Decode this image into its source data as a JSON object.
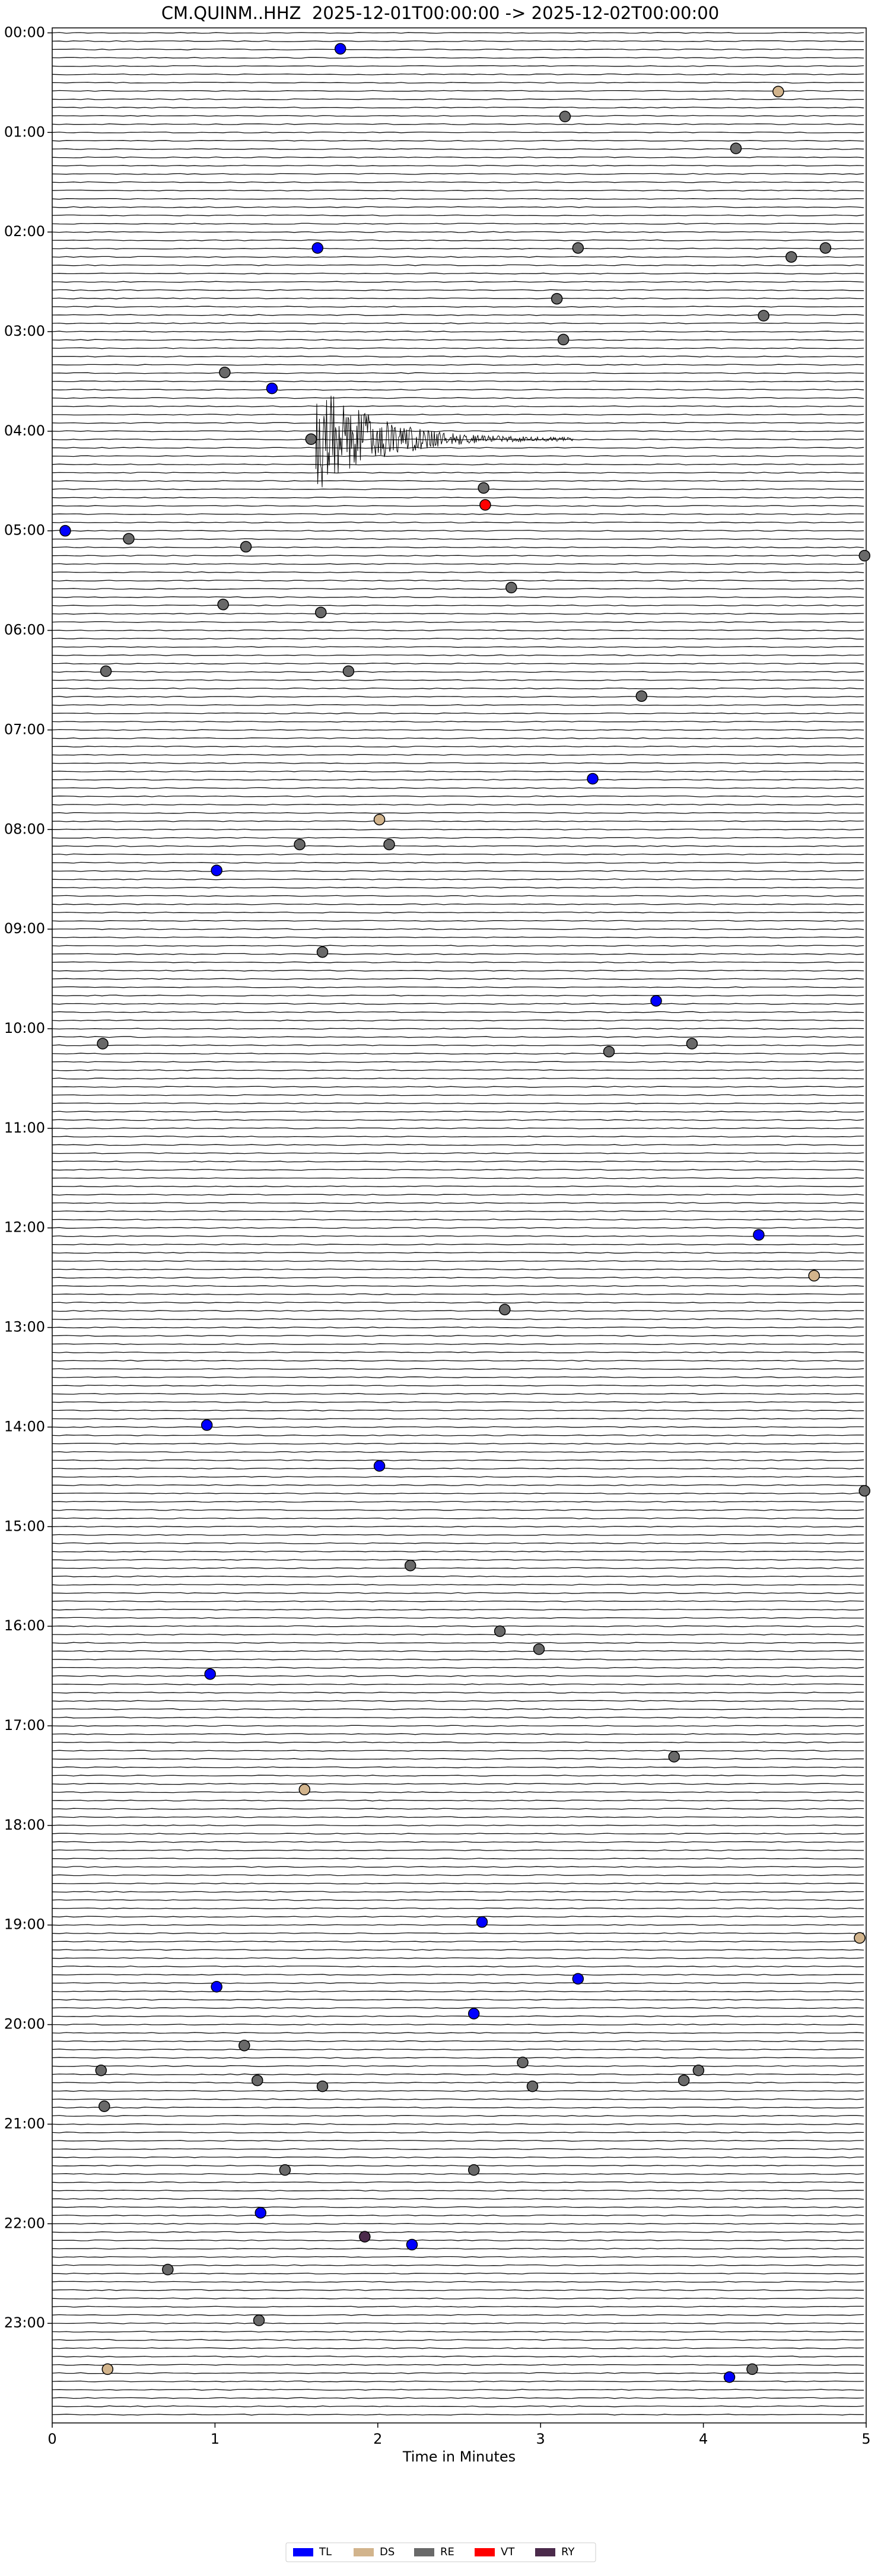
{
  "chart_data": {
    "type": "scatter",
    "title": "CM.QUINM..HHZ  2025-12-01T00:00:00 -> 2025-12-02T00:00:00",
    "xlabel": "Time in Minutes",
    "xlim": [
      0,
      5
    ],
    "xticks": [
      0,
      1,
      2,
      3,
      4,
      5
    ],
    "ylim": [
      -0.05,
      24
    ],
    "y_inverted": true,
    "yticks": [
      {
        "value": 0,
        "label": "00:00"
      },
      {
        "value": 1,
        "label": "01:00"
      },
      {
        "value": 2,
        "label": "02:00"
      },
      {
        "value": 3,
        "label": "03:00"
      },
      {
        "value": 4,
        "label": "04:00"
      },
      {
        "value": 5,
        "label": "05:00"
      },
      {
        "value": 6,
        "label": "06:00"
      },
      {
        "value": 7,
        "label": "07:00"
      },
      {
        "value": 8,
        "label": "08:00"
      },
      {
        "value": 9,
        "label": "09:00"
      },
      {
        "value": 10,
        "label": "10:00"
      },
      {
        "value": 11,
        "label": "11:00"
      },
      {
        "value": 12,
        "label": "12:00"
      },
      {
        "value": 13,
        "label": "13:00"
      },
      {
        "value": 14,
        "label": "14:00"
      },
      {
        "value": 15,
        "label": "15:00"
      },
      {
        "value": 16,
        "label": "16:00"
      },
      {
        "value": 17,
        "label": "17:00"
      },
      {
        "value": 18,
        "label": "18:00"
      },
      {
        "value": 19,
        "label": "19:00"
      },
      {
        "value": 20,
        "label": "20:00"
      },
      {
        "value": 21,
        "label": "21:00"
      },
      {
        "value": 22,
        "label": "22:00"
      },
      {
        "value": 23,
        "label": "23:00"
      }
    ],
    "legend": "bottom",
    "series": [
      {
        "name": "TL",
        "color": "#0000ff",
        "x": [
          1.77,
          1.63,
          1.35,
          0.08,
          3.32,
          1.01,
          3.71,
          4.34,
          0.95,
          2.01,
          0.97,
          2.64,
          3.23,
          1.01,
          2.59,
          1.28,
          2.21,
          4.16
        ],
        "y": [
          0.16,
          2.16,
          3.57,
          5.0,
          7.49,
          8.41,
          9.72,
          12.07,
          13.98,
          14.39,
          16.48,
          18.97,
          19.54,
          19.62,
          19.89,
          21.89,
          22.21,
          23.54
        ]
      },
      {
        "name": "DS",
        "color": "#d2b48c",
        "x": [
          4.46,
          2.01,
          4.68,
          1.55,
          4.96,
          0.34
        ],
        "y": [
          0.59,
          7.9,
          12.48,
          17.64,
          19.13,
          23.46
        ]
      },
      {
        "name": "RE",
        "color": "#696969",
        "x": [
          3.15,
          4.2,
          3.23,
          4.54,
          4.75,
          3.1,
          4.37,
          3.14,
          1.06,
          1.59,
          2.65,
          0.47,
          1.19,
          4.99,
          2.82,
          1.05,
          1.65,
          0.33,
          1.82,
          3.62,
          1.52,
          2.07,
          1.66,
          0.31,
          3.42,
          3.93,
          2.78,
          4.99,
          2.2,
          2.75,
          2.99,
          3.82,
          1.18,
          0.3,
          2.89,
          3.97,
          1.26,
          1.66,
          2.95,
          3.88,
          0.32,
          1.43,
          2.59,
          0.71,
          1.27,
          4.3
        ],
        "y": [
          0.84,
          1.16,
          2.16,
          2.25,
          2.16,
          2.67,
          2.84,
          3.08,
          3.41,
          4.08,
          4.57,
          5.08,
          5.16,
          5.25,
          5.57,
          5.74,
          5.82,
          6.41,
          6.41,
          6.66,
          8.15,
          8.15,
          9.23,
          10.15,
          10.23,
          10.15,
          12.82,
          14.64,
          15.39,
          16.05,
          16.23,
          17.31,
          20.21,
          20.46,
          20.38,
          20.46,
          20.56,
          20.62,
          20.62,
          20.56,
          20.82,
          21.46,
          21.46,
          22.46,
          22.97,
          23.46
        ]
      },
      {
        "name": "VT",
        "color": "#ff0000",
        "x": [
          2.66
        ],
        "y": [
          4.74
        ]
      },
      {
        "name": "RY",
        "color": "#4b2a4b",
        "x": [
          1.92
        ],
        "y": [
          22.13
        ]
      }
    ]
  }
}
